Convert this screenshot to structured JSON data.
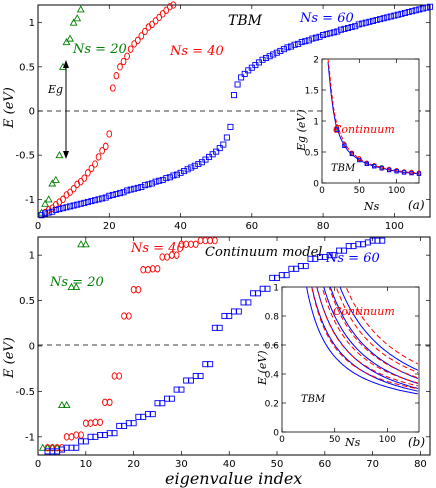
{
  "figure": {
    "xlabel": "eigenvalue index",
    "panel_a_label": "(a)",
    "panel_b_label": "(b)",
    "ylabel": "E (eV)"
  },
  "chart_data": [
    {
      "type": "scatter",
      "panel": "a",
      "title": "TBM",
      "xlabel": "eigenvalue index",
      "ylabel": "E (eV)",
      "xlim": [
        0,
        110
      ],
      "ylim": [
        -1.2,
        1.2
      ],
      "xticks": [
        "0",
        "20",
        "40",
        "60",
        "80",
        "100"
      ],
      "yticks": [
        "-1",
        "-0.5",
        "0",
        "0.5",
        "1"
      ],
      "annotations": {
        "gap_label": "Eg"
      },
      "series": [
        {
          "name": "Ns = 20",
          "color": "#008000",
          "marker": "triangle",
          "x": [
            1,
            2,
            3,
            4,
            5,
            6,
            7,
            8,
            9,
            10,
            11,
            12
          ],
          "y": [
            -1.15,
            -1.05,
            -1.0,
            -0.82,
            -0.78,
            -0.5,
            0.5,
            0.78,
            0.82,
            1.0,
            1.05,
            1.15
          ]
        },
        {
          "name": "Ns = 40",
          "color": "#ff0000",
          "marker": "circle",
          "x": [
            2,
            3,
            4,
            5,
            6,
            7,
            8,
            9,
            10,
            11,
            12,
            13,
            14,
            15,
            16,
            17,
            18,
            19,
            20,
            21,
            22,
            23,
            24,
            25,
            26,
            27,
            28,
            29,
            30,
            31,
            32,
            33,
            34,
            35,
            36,
            37,
            38
          ],
          "y": [
            -1.15,
            -1.12,
            -1.1,
            -1.06,
            -1.03,
            -1.0,
            -0.95,
            -0.92,
            -0.88,
            -0.83,
            -0.8,
            -0.76,
            -0.7,
            -0.65,
            -0.6,
            -0.52,
            -0.45,
            -0.4,
            -0.26,
            0.26,
            0.4,
            0.5,
            0.56,
            0.62,
            0.7,
            0.76,
            0.8,
            0.85,
            0.9,
            0.95,
            0.98,
            1.02,
            1.06,
            1.1,
            1.14,
            1.18,
            1.2
          ]
        },
        {
          "name": "Ns = 60",
          "color": "#0000ff",
          "marker": "square",
          "x": [
            1,
            2,
            3,
            4,
            5,
            6,
            7,
            8,
            9,
            10,
            11,
            12,
            13,
            14,
            15,
            16,
            17,
            18,
            19,
            20,
            21,
            22,
            23,
            24,
            25,
            26,
            27,
            28,
            29,
            30,
            31,
            32,
            33,
            34,
            35,
            36,
            37,
            38,
            39,
            40,
            41,
            42,
            43,
            44,
            45,
            46,
            47,
            48,
            49,
            50,
            51,
            52,
            53,
            54,
            55,
            56,
            57,
            58,
            59,
            60,
            61,
            62,
            63,
            64,
            65,
            66,
            67,
            68,
            69,
            70,
            71,
            72,
            73,
            74,
            75,
            76,
            77,
            78,
            79,
            80,
            81,
            82,
            83,
            84,
            85,
            86,
            87,
            88,
            89,
            90,
            91,
            92,
            93,
            94,
            95,
            96,
            97,
            98,
            99,
            100,
            101,
            102,
            103,
            104,
            105,
            106,
            107,
            108,
            109,
            110
          ],
          "y": [
            -1.18,
            -1.16,
            -1.15,
            -1.14,
            -1.12,
            -1.11,
            -1.1,
            -1.09,
            -1.08,
            -1.07,
            -1.06,
            -1.05,
            -1.04,
            -1.03,
            -1.02,
            -1.01,
            -1.0,
            -0.99,
            -0.98,
            -0.96,
            -0.95,
            -0.94,
            -0.93,
            -0.92,
            -0.9,
            -0.89,
            -0.88,
            -0.87,
            -0.86,
            -0.84,
            -0.83,
            -0.82,
            -0.8,
            -0.79,
            -0.78,
            -0.76,
            -0.75,
            -0.73,
            -0.72,
            -0.7,
            -0.68,
            -0.66,
            -0.64,
            -0.62,
            -0.6,
            -0.58,
            -0.55,
            -0.52,
            -0.49,
            -0.46,
            -0.42,
            -0.38,
            -0.3,
            -0.18,
            0.18,
            0.3,
            0.38,
            0.42,
            0.46,
            0.49,
            0.52,
            0.55,
            0.58,
            0.6,
            0.62,
            0.64,
            0.66,
            0.68,
            0.7,
            0.72,
            0.73,
            0.75,
            0.76,
            0.78,
            0.79,
            0.8,
            0.82,
            0.83,
            0.84,
            0.86,
            0.87,
            0.88,
            0.89,
            0.9,
            0.92,
            0.93,
            0.94,
            0.95,
            0.96,
            0.98,
            0.99,
            1.0,
            1.01,
            1.02,
            1.03,
            1.04,
            1.05,
            1.06,
            1.07,
            1.08,
            1.09,
            1.1,
            1.11,
            1.12,
            1.13,
            1.14,
            1.15,
            1.16,
            1.17,
            1.18
          ]
        }
      ],
      "inset": {
        "type": "line",
        "xlabel": "Ns",
        "ylabel": "Eg (eV)",
        "xlim": [
          0,
          130
        ],
        "ylim": [
          0,
          2
        ],
        "xticks": [
          "0",
          "50",
          "100"
        ],
        "yticks": [
          "0",
          "0.5",
          "1",
          "1.5",
          "2"
        ],
        "labels": {
          "continuum": "Continuum",
          "tbm": "TBM"
        },
        "continuum_curve": {
          "x": [
            8,
            10,
            12,
            15,
            18,
            20,
            25,
            30,
            35,
            40,
            50,
            60,
            70,
            80,
            90,
            100,
            110,
            120,
            130
          ],
          "y": [
            2.0,
            1.8,
            1.55,
            1.25,
            1.05,
            0.95,
            0.78,
            0.65,
            0.56,
            0.49,
            0.39,
            0.33,
            0.28,
            0.25,
            0.22,
            0.2,
            0.18,
            0.17,
            0.16
          ]
        },
        "tbm_curve": {
          "x": [
            8,
            10,
            12,
            15,
            18,
            20,
            25,
            30,
            35,
            40,
            50,
            60,
            70,
            80,
            90,
            100,
            110,
            120,
            130
          ],
          "y": [
            1.95,
            1.7,
            1.45,
            1.18,
            0.98,
            0.88,
            0.72,
            0.6,
            0.52,
            0.46,
            0.37,
            0.31,
            0.27,
            0.24,
            0.21,
            0.19,
            0.17,
            0.16,
            0.15
          ]
        },
        "points_green": {
          "x": [
            20,
            30,
            40,
            50,
            60,
            70,
            80,
            90,
            100,
            110,
            120,
            130
          ],
          "y": [
            0.88,
            0.62,
            0.48,
            0.39,
            0.32,
            0.28,
            0.25,
            0.22,
            0.2,
            0.18,
            0.17,
            0.16
          ]
        },
        "points_red": {
          "x": [
            20,
            30,
            40,
            50,
            60,
            70,
            80,
            90,
            100,
            110,
            120,
            130
          ],
          "y": [
            0.9,
            0.62,
            0.48,
            0.39,
            0.32,
            0.28,
            0.24,
            0.22,
            0.2,
            0.18,
            0.17,
            0.16
          ]
        },
        "points_blue": {
          "x": [
            20,
            30,
            40,
            50,
            60,
            70,
            80,
            90,
            100,
            110,
            120,
            130
          ],
          "y": [
            0.86,
            0.6,
            0.47,
            0.37,
            0.31,
            0.27,
            0.24,
            0.21,
            0.19,
            0.17,
            0.16,
            0.15
          ]
        }
      }
    },
    {
      "type": "scatter",
      "panel": "b",
      "title": "Continuum model",
      "xlabel": "eigenvalue index",
      "ylabel": "E (eV)",
      "xlim": [
        0,
        82
      ],
      "ylim": [
        -1.2,
        1.2
      ],
      "xticks": [
        "0",
        "10",
        "20",
        "30",
        "40",
        "50",
        "60",
        "70",
        "80"
      ],
      "yticks": [
        "-1",
        "-0.5",
        "0",
        "0.5",
        "1"
      ],
      "series": [
        {
          "name": "Ns = 20",
          "color": "#008000",
          "marker": "triangle",
          "x": [
            1,
            2,
            3,
            4,
            5,
            6,
            7,
            8,
            9,
            10
          ],
          "y": [
            -1.12,
            -1.12,
            -1.12,
            -1.12,
            -0.65,
            -0.65,
            0.65,
            0.65,
            1.12,
            1.12
          ]
        },
        {
          "name": "Ns = 40",
          "color": "#ff0000",
          "marker": "circle",
          "x": [
            2,
            3,
            4,
            5,
            6,
            7,
            8,
            9,
            10,
            11,
            12,
            13,
            14,
            15,
            16,
            17,
            18,
            19,
            20,
            21,
            22,
            23,
            24,
            25,
            26,
            27,
            28,
            29,
            30,
            31,
            32,
            33,
            34,
            35,
            36,
            37
          ],
          "y": [
            -1.12,
            -1.12,
            -1.12,
            -1.12,
            -1.0,
            -1.0,
            -0.98,
            -0.98,
            -0.85,
            -0.85,
            -0.84,
            -0.84,
            -0.62,
            -0.62,
            -0.33,
            -0.33,
            0.33,
            0.33,
            0.62,
            0.62,
            0.84,
            0.84,
            0.85,
            0.85,
            0.98,
            0.98,
            1.0,
            1.0,
            1.12,
            1.12,
            1.12,
            1.12,
            1.16,
            1.16,
            1.16,
            1.16
          ]
        },
        {
          "name": "Ns = 60",
          "color": "#0000ff",
          "marker": "square",
          "x": [
            2,
            3,
            4,
            5,
            6,
            7,
            8,
            9,
            10,
            11,
            12,
            13,
            14,
            15,
            16,
            17,
            18,
            19,
            20,
            21,
            22,
            23,
            24,
            25,
            26,
            27,
            28,
            29,
            30,
            31,
            32,
            33,
            34,
            35,
            36,
            37,
            38,
            39,
            40,
            41,
            42,
            43,
            44,
            45,
            46,
            47,
            48,
            49,
            50,
            51,
            52,
            53,
            54,
            55,
            56,
            57,
            58,
            59,
            60,
            61,
            62,
            63,
            64,
            65,
            66,
            67,
            68,
            69,
            70,
            71,
            72
          ],
          "y": [
            -1.16,
            -1.16,
            -1.16,
            -1.14,
            -1.12,
            -1.12,
            -1.12,
            -1.05,
            -1.05,
            -1.0,
            -1.0,
            -0.98,
            -0.98,
            -0.96,
            -0.96,
            -0.88,
            -0.88,
            -0.85,
            -0.85,
            -0.78,
            -0.78,
            -0.75,
            -0.75,
            -0.63,
            -0.63,
            -0.58,
            -0.58,
            -0.48,
            -0.48,
            -0.38,
            -0.38,
            -0.33,
            -0.33,
            -0.2,
            -0.2,
            0.2,
            0.2,
            0.33,
            0.33,
            0.38,
            0.38,
            0.48,
            0.48,
            0.58,
            0.58,
            0.63,
            0.63,
            0.75,
            0.75,
            0.78,
            0.78,
            0.85,
            0.85,
            0.88,
            0.88,
            0.96,
            0.96,
            0.98,
            0.98,
            1.0,
            1.0,
            1.05,
            1.05,
            1.1,
            1.1,
            1.12,
            1.12,
            1.14,
            1.16,
            1.16,
            1.16
          ]
        }
      ],
      "inset": {
        "type": "line",
        "xlabel": "Ns",
        "ylabel": "E (eV)",
        "xlim": [
          0,
          130
        ],
        "ylim": [
          0,
          1
        ],
        "xticks": [
          "0",
          "50",
          "100"
        ],
        "yticks": [
          "0",
          "0.2",
          "0.4",
          "0.6",
          "0.8",
          "1"
        ],
        "labels": {
          "continuum": "Continuum",
          "tbm": "TBM"
        },
        "curve_scales": [
          55,
          45,
          38,
          31,
          26,
          21
        ],
        "continuum_offset": 4
      }
    }
  ]
}
